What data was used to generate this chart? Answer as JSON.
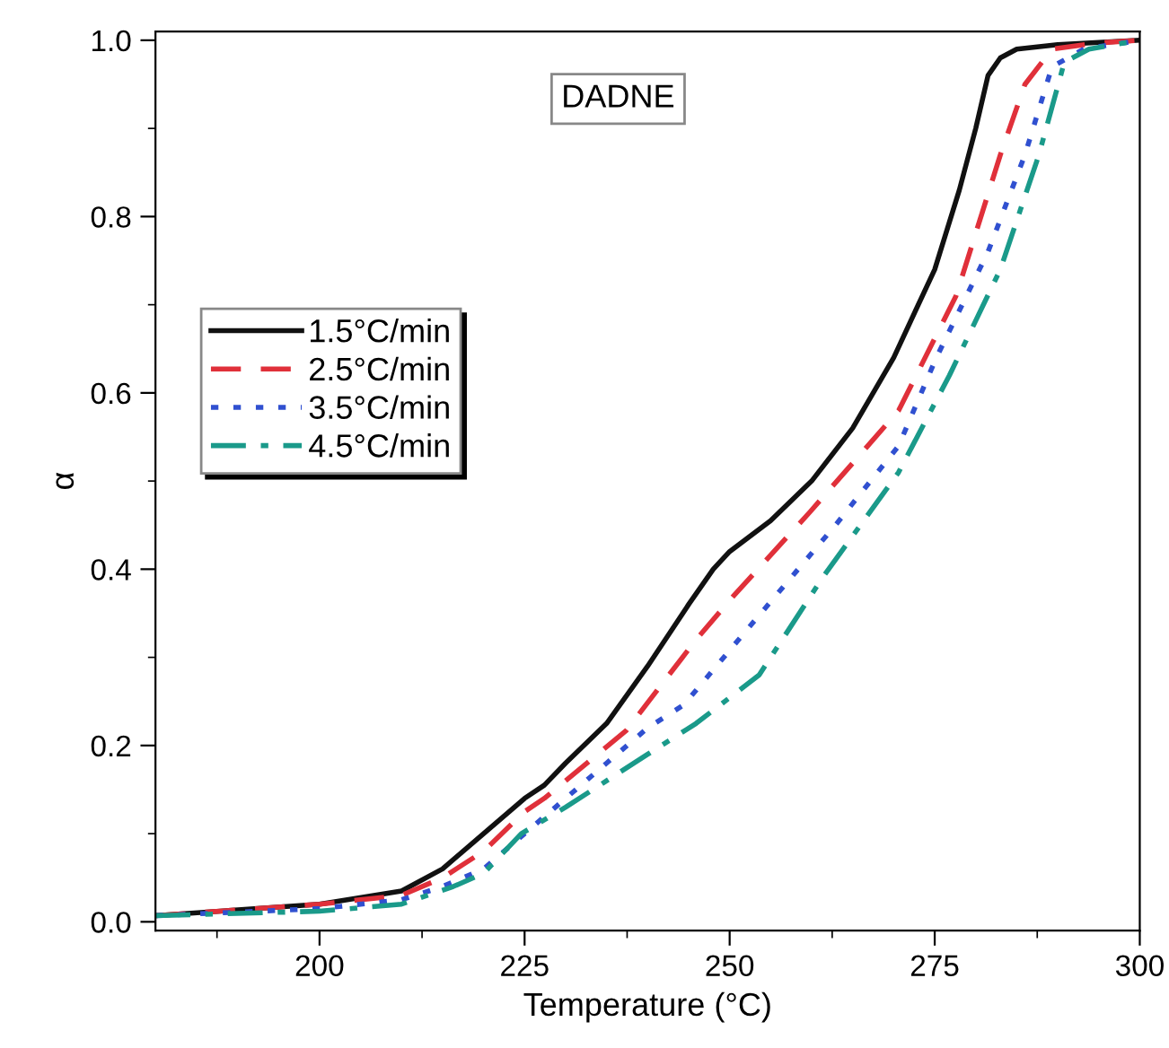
{
  "chart_data": {
    "type": "line",
    "xlabel": "Temperature (°C)",
    "ylabel": "α",
    "annotations": [
      "DADNE"
    ],
    "xlim": [
      180,
      300
    ],
    "xticks": [
      200,
      225,
      250,
      275,
      300
    ],
    "ylim": [
      -0.01,
      1.01
    ],
    "yticks": [
      {
        "value": 0,
        "label": "0.0"
      },
      {
        "value": 0.2,
        "label": "0.2"
      },
      {
        "value": 0.4,
        "label": "0.4"
      },
      {
        "value": 0.6,
        "label": "0.6"
      },
      {
        "value": 0.8,
        "label": "0.8"
      },
      {
        "value": 1.0,
        "label": "1.0"
      }
    ],
    "grid": false,
    "legend": "left",
    "marker": "none",
    "series": [
      {
        "name": "1.5°C/min",
        "color": "#111111",
        "line_style": "solid",
        "x": [
          180,
          200,
          210,
          215,
          220,
          225,
          227.4,
          230,
          235,
          240,
          245,
          248,
          250,
          255,
          260,
          265,
          270,
          275,
          278,
          280,
          281.5,
          283,
          285,
          290,
          300
        ],
        "values": [
          0.007,
          0.02,
          0.035,
          0.06,
          0.1,
          0.14,
          0.155,
          0.18,
          0.225,
          0.29,
          0.36,
          0.4,
          0.42,
          0.455,
          0.5,
          0.56,
          0.64,
          0.74,
          0.83,
          0.9,
          0.96,
          0.98,
          0.99,
          0.995,
          1.0
        ]
      },
      {
        "name": "2.5°C/min",
        "color": "#e0303a",
        "line_style": "dashed",
        "x": [
          180,
          200,
          210,
          215,
          220,
          225,
          227.4,
          230,
          237.4,
          245.9,
          250.5,
          259.8,
          270.6,
          277.6,
          283,
          286,
          289.3,
          295,
          300
        ],
        "values": [
          0.007,
          0.02,
          0.03,
          0.05,
          0.08,
          0.125,
          0.14,
          0.16,
          0.217,
          0.32,
          0.37,
          0.465,
          0.58,
          0.71,
          0.87,
          0.95,
          0.99,
          0.997,
          1.0
        ]
      },
      {
        "name": "3.5°C/min",
        "color": "#3050d0",
        "line_style": "dotted",
        "x": [
          180,
          200,
          210,
          215,
          220,
          225,
          230,
          235,
          240,
          244.4,
          252.9,
          262.9,
          270.6,
          275.2,
          281.5,
          286,
          289.3,
          293.2,
          300
        ],
        "values": [
          0.007,
          0.015,
          0.025,
          0.04,
          0.06,
          0.1,
          0.14,
          0.18,
          0.22,
          0.246,
          0.34,
          0.45,
          0.54,
          0.64,
          0.76,
          0.87,
          0.97,
          0.99,
          1.0
        ]
      },
      {
        "name": "4.5°C/min",
        "color": "#1a9a8a",
        "line_style": "dashdot",
        "x": [
          180,
          200,
          210,
          216.3,
          220,
          224.6,
          230,
          235,
          240,
          245.9,
          253.6,
          261.3,
          270.6,
          276.8,
          283,
          287.7,
          290.8,
          293.8,
          300
        ],
        "values": [
          0.007,
          0.012,
          0.02,
          0.04,
          0.055,
          0.1,
          0.13,
          0.16,
          0.19,
          0.225,
          0.28,
          0.39,
          0.51,
          0.62,
          0.74,
          0.87,
          0.975,
          0.99,
          1.0
        ]
      }
    ]
  }
}
